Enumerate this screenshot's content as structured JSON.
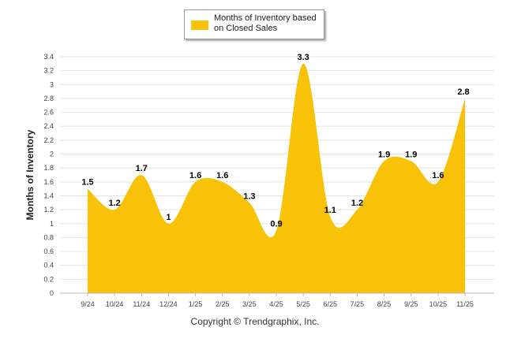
{
  "chart_data": {
    "type": "area",
    "title": "",
    "xlabel": "",
    "ylabel": "Months of Inventory",
    "ylim": [
      0,
      3.4
    ],
    "y_ticks": [
      "0",
      "0.2",
      "0.4",
      "0.6",
      "0.8",
      "1",
      "1.2",
      "1.4",
      "1.6",
      "1.8",
      "2",
      "2.2",
      "2.4",
      "2.6",
      "2.8",
      "3",
      "3.2",
      "3.4"
    ],
    "categories": [
      "9/24",
      "10/24",
      "11/24",
      "12/24",
      "1/25",
      "2/25",
      "3/25",
      "4/25",
      "5/25",
      "6/25",
      "7/25",
      "8/25",
      "9/25",
      "10/25",
      "11/25"
    ],
    "series": [
      {
        "name": "Months of Inventory based on Closed Sales",
        "values": [
          1.5,
          1.2,
          1.7,
          1,
          1.6,
          1.6,
          1.3,
          0.9,
          3.3,
          1.1,
          1.2,
          1.9,
          1.9,
          1.6,
          2.8
        ],
        "labels": [
          "1.5",
          "1.2",
          "1.7",
          "1",
          "1.6",
          "1.6",
          "1.3",
          "0.9",
          "3.3",
          "1.1",
          "1.2",
          "1.9",
          "1.9",
          "1.6",
          "2.8"
        ]
      }
    ],
    "grid": true,
    "legend_position": "top-center",
    "fill_color": "#F7C208",
    "grid_color": "#E4E4E4",
    "axis_color": "#BBBBBB"
  },
  "legend": {
    "label_line1": "Months of Inventory based",
    "label_line2": "on Closed Sales"
  },
  "footer": {
    "copyright": "Copyright © Trendgraphix, Inc."
  }
}
